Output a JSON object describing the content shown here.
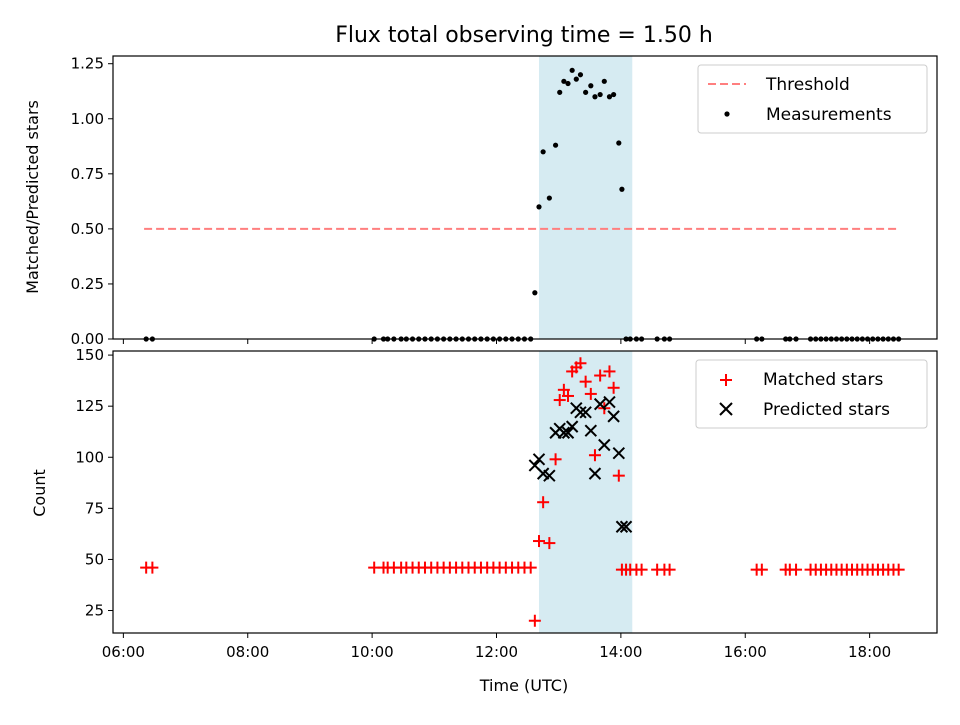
{
  "figure": {
    "title": "Flux total observing time = 1.50 h",
    "xlabel": "Time (UTC)",
    "x_ticks": [
      "06:00",
      "08:00",
      "10:00",
      "12:00",
      "14:00",
      "16:00",
      "18:00"
    ],
    "colors": {
      "threshold": "#ff7f7f",
      "measurement": "#000000",
      "matched": "#ff0000",
      "predicted": "#000000",
      "span": "#add8e6"
    },
    "observing_span": {
      "start": "12:41",
      "end": "14:11"
    }
  },
  "chart_data": [
    {
      "type": "scatter",
      "ylabel": "Matched/Predicted stars",
      "y_ticks": [
        "0.00",
        "0.25",
        "0.50",
        "0.75",
        "1.00",
        "1.25"
      ],
      "xlim": [
        "05:50",
        "19:05"
      ],
      "ylim": [
        0,
        1.285
      ],
      "threshold": {
        "name": "Threshold",
        "value": 0.5,
        "x_range": [
          "06:20",
          "18:28"
        ]
      },
      "series": [
        {
          "name": "Measurements",
          "x": [
            "06:22",
            "06:28",
            "10:02",
            "10:11",
            "10:15",
            "10:21",
            "10:28",
            "10:33",
            "10:39",
            "10:45",
            "10:51",
            "10:57",
            "11:03",
            "11:09",
            "11:15",
            "11:21",
            "11:27",
            "11:33",
            "11:39",
            "11:45",
            "11:51",
            "11:57",
            "12:03",
            "12:09",
            "12:15",
            "12:21",
            "12:27",
            "12:33",
            "12:37",
            "12:41",
            "12:45",
            "12:51",
            "12:57",
            "13:01",
            "13:05",
            "13:09",
            "13:13",
            "13:17",
            "13:21",
            "13:26",
            "13:31",
            "13:35",
            "13:40",
            "13:44",
            "13:49",
            "13:53",
            "13:58",
            "14:01",
            "14:05",
            "14:09",
            "14:15",
            "14:20",
            "14:35",
            "14:42",
            "14:47",
            "16:11",
            "16:16",
            "16:39",
            "16:43",
            "16:49",
            "17:03",
            "17:08",
            "17:13",
            "17:18",
            "17:23",
            "17:28",
            "17:33",
            "17:38",
            "17:43",
            "17:48",
            "17:53",
            "17:58",
            "18:03",
            "18:08",
            "18:13",
            "18:18",
            "18:23",
            "18:28"
          ],
          "y": [
            0,
            0,
            0,
            0,
            0,
            0,
            0,
            0,
            0,
            0,
            0,
            0,
            0,
            0,
            0,
            0,
            0,
            0,
            0,
            0,
            0,
            0,
            0,
            0,
            0,
            0,
            0,
            0,
            0.21,
            0.6,
            0.85,
            0.64,
            0.88,
            1.12,
            1.17,
            1.16,
            1.22,
            1.18,
            1.2,
            1.12,
            1.15,
            1.1,
            1.11,
            1.17,
            1.1,
            1.11,
            0.89,
            0.68,
            0,
            0,
            0,
            0,
            0,
            0,
            0,
            0,
            0,
            0,
            0,
            0,
            0,
            0,
            0,
            0,
            0,
            0,
            0,
            0,
            0,
            0,
            0,
            0,
            0,
            0,
            0,
            0,
            0,
            0
          ]
        }
      ]
    },
    {
      "type": "scatter",
      "ylabel": "Count",
      "y_ticks": [
        "25",
        "50",
        "75",
        "100",
        "125",
        "150"
      ],
      "xlim": [
        "05:50",
        "19:05"
      ],
      "ylim": [
        14,
        152
      ],
      "series": [
        {
          "name": "Matched stars",
          "x": [
            "06:22",
            "06:28",
            "10:02",
            "10:11",
            "10:15",
            "10:21",
            "10:28",
            "10:33",
            "10:39",
            "10:45",
            "10:51",
            "10:57",
            "11:03",
            "11:09",
            "11:15",
            "11:21",
            "11:27",
            "11:33",
            "11:39",
            "11:45",
            "11:51",
            "11:57",
            "12:03",
            "12:09",
            "12:15",
            "12:21",
            "12:27",
            "12:33",
            "12:37",
            "12:41",
            "12:45",
            "12:51",
            "12:57",
            "13:01",
            "13:05",
            "13:09",
            "13:13",
            "13:17",
            "13:21",
            "13:26",
            "13:31",
            "13:35",
            "13:40",
            "13:44",
            "13:49",
            "13:53",
            "13:58",
            "14:01",
            "14:05",
            "14:09",
            "14:15",
            "14:20",
            "14:35",
            "14:42",
            "14:47",
            "16:11",
            "16:16",
            "16:39",
            "16:43",
            "16:49",
            "17:03",
            "17:08",
            "17:13",
            "17:18",
            "17:23",
            "17:28",
            "17:33",
            "17:38",
            "17:43",
            "17:48",
            "17:53",
            "17:58",
            "18:03",
            "18:08",
            "18:13",
            "18:18",
            "18:23",
            "18:28"
          ],
          "y": [
            46,
            46,
            46,
            46,
            46,
            46,
            46,
            46,
            46,
            46,
            46,
            46,
            46,
            46,
            46,
            46,
            46,
            46,
            46,
            46,
            46,
            46,
            46,
            46,
            46,
            46,
            46,
            46,
            20,
            59,
            78,
            58,
            99,
            128,
            133,
            130,
            142,
            144,
            146,
            137,
            131,
            101,
            140,
            124,
            142,
            134,
            91,
            45,
            45,
            45,
            45,
            45,
            45,
            45,
            45,
            45,
            45,
            45,
            45,
            45,
            45,
            45,
            45,
            45,
            45,
            45,
            45,
            45,
            45,
            45,
            45,
            45,
            45,
            45,
            45,
            45,
            45,
            45
          ]
        },
        {
          "name": "Predicted stars",
          "x": [
            "12:37",
            "12:41",
            "12:45",
            "12:51",
            "12:57",
            "13:01",
            "13:05",
            "13:09",
            "13:13",
            "13:17",
            "13:21",
            "13:26",
            "13:31",
            "13:35",
            "13:40",
            "13:44",
            "13:49",
            "13:53",
            "13:58",
            "14:01",
            "14:05"
          ],
          "y": [
            96,
            99,
            92,
            91,
            112,
            114,
            112,
            112,
            115,
            124,
            122,
            122,
            113,
            92,
            126,
            106,
            127,
            120,
            102,
            66,
            66
          ]
        }
      ]
    }
  ]
}
